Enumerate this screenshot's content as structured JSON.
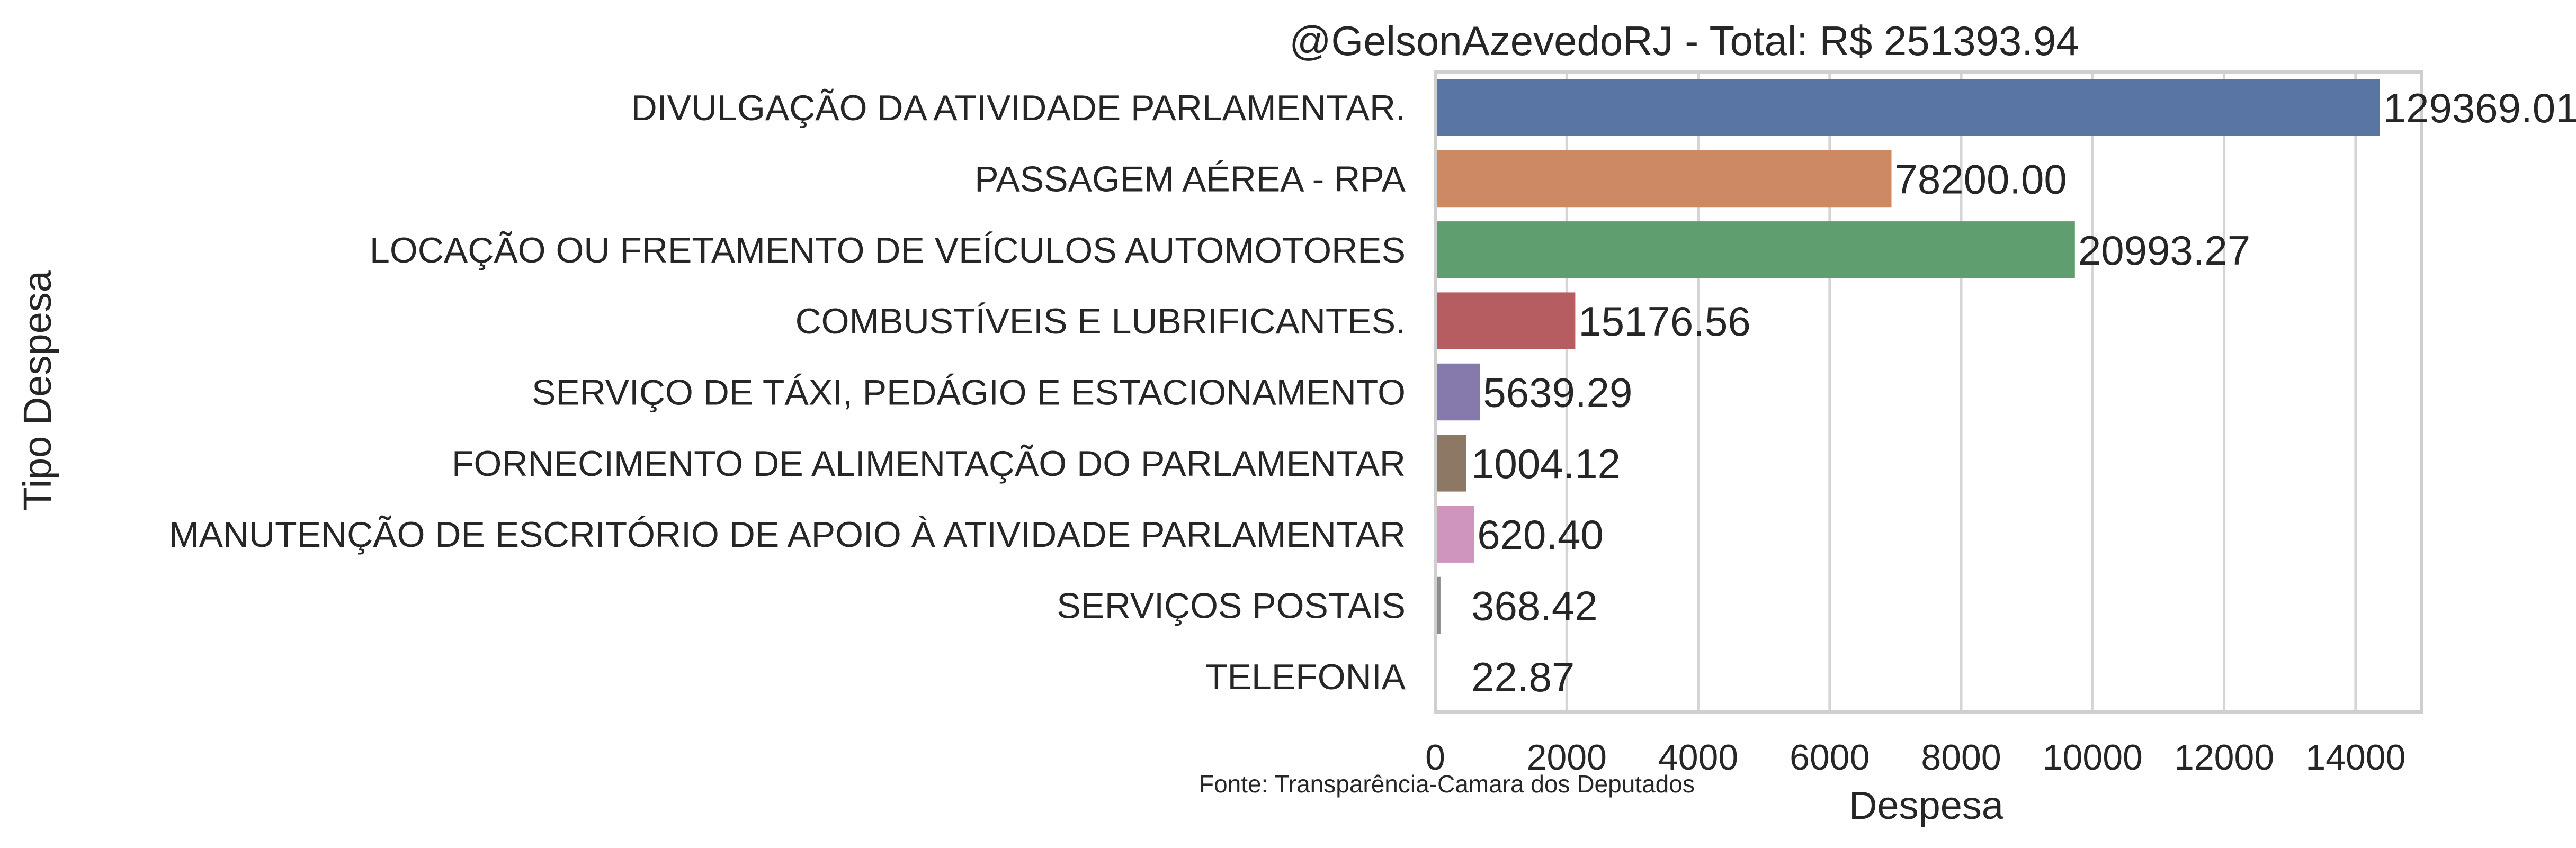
{
  "chart_data": {
    "type": "bar",
    "orientation": "horizontal",
    "title": "@GelsonAzevedoRJ - Total: R$ 251393.94",
    "xlabel": "Despesa",
    "ylabel": "Tipo Despesa",
    "source": "Fonte: Transparência-Camara dos Deputados",
    "xlim": [
      0,
      15000
    ],
    "xticks": [
      0,
      2000,
      4000,
      6000,
      8000,
      10000,
      12000,
      14000
    ],
    "xtick_labels": [
      "0",
      "2000",
      "4000",
      "6000",
      "8000",
      "10000",
      "12000",
      "14000"
    ],
    "grid": true,
    "categories": [
      "DIVULGAÇÃO DA ATIVIDADE PARLAMENTAR.",
      "PASSAGEM AÉREA - RPA",
      "LOCAÇÃO OU FRETAMENTO DE VEÍCULOS AUTOMOTORES",
      "COMBUSTÍVEIS E LUBRIFICANTES.",
      "SERVIÇO DE TÁXI, PEDÁGIO E ESTACIONAMENTO",
      "FORNECIMENTO DE ALIMENTAÇÃO DO PARLAMENTAR",
      "MANUTENÇÃO DE ESCRITÓRIO DE APOIO À ATIVIDADE PARLAMENTAR",
      "SERVIÇOS POSTAIS",
      "TELEFONIA"
    ],
    "values": [
      14370,
      6940,
      9730,
      2130,
      680,
      470,
      590,
      80,
      10
    ],
    "data_labels": [
      "129369.01",
      "78200.00",
      "20993.27",
      "15176.56",
      "5639.29",
      "1004.12",
      "620.40",
      "368.42",
      "22.87"
    ],
    "colors": [
      "#5975a4",
      "#cc8963",
      "#5f9e6e",
      "#b55d60",
      "#857aab",
      "#8d7866",
      "#d095bf",
      "#8c8c8c",
      "#c1b37f"
    ]
  }
}
